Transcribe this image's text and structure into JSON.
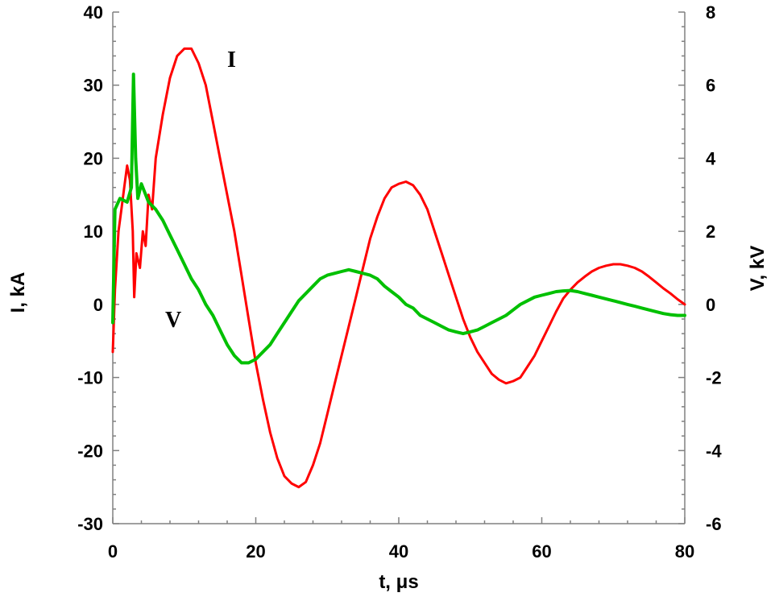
{
  "chart_data": {
    "type": "line",
    "xlabel": "t, μs",
    "ylabel_left": "I, kA",
    "ylabel_right": "V, kV",
    "xlim": [
      0,
      80
    ],
    "ylim_left": [
      -30,
      40
    ],
    "ylim_right": [
      -6,
      8
    ],
    "x_ticks": [
      "0",
      "20",
      "40",
      "60",
      "80"
    ],
    "y_left_ticks": [
      "-30",
      "-20",
      "-10",
      "0",
      "10",
      "20",
      "30",
      "40"
    ],
    "y_right_ticks": [
      "-6",
      "-4",
      "-2",
      "0",
      "2",
      "4",
      "6",
      "8"
    ],
    "grid": false,
    "series": [
      {
        "name": "I",
        "axis": "left",
        "color": "#ff0000",
        "points": [
          [
            0,
            -6.5
          ],
          [
            0.3,
            2
          ],
          [
            0.8,
            10
          ],
          [
            1.2,
            13
          ],
          [
            1.6,
            16
          ],
          [
            2.0,
            19
          ],
          [
            2.4,
            17
          ],
          [
            2.8,
            10
          ],
          [
            3.0,
            1
          ],
          [
            3.3,
            7
          ],
          [
            3.8,
            5
          ],
          [
            4.2,
            10
          ],
          [
            4.6,
            8
          ],
          [
            5.0,
            15
          ],
          [
            5.5,
            13
          ],
          [
            6,
            20
          ],
          [
            7,
            26
          ],
          [
            8,
            31
          ],
          [
            9,
            34
          ],
          [
            10,
            35
          ],
          [
            11,
            35
          ],
          [
            12,
            33
          ],
          [
            13,
            30
          ],
          [
            14,
            25
          ],
          [
            15,
            20
          ],
          [
            16,
            15
          ],
          [
            17,
            10
          ],
          [
            18,
            4
          ],
          [
            19,
            -2
          ],
          [
            20,
            -8
          ],
          [
            21,
            -13
          ],
          [
            22,
            -17.5
          ],
          [
            23,
            -21
          ],
          [
            24,
            -23.5
          ],
          [
            25,
            -24.5
          ],
          [
            26,
            -25
          ],
          [
            27,
            -24.3
          ],
          [
            28,
            -22
          ],
          [
            29,
            -19
          ],
          [
            30,
            -15
          ],
          [
            31,
            -11
          ],
          [
            32,
            -7
          ],
          [
            33,
            -3
          ],
          [
            34,
            1
          ],
          [
            35,
            5
          ],
          [
            36,
            9
          ],
          [
            37,
            12
          ],
          [
            38,
            14.5
          ],
          [
            39,
            16
          ],
          [
            40,
            16.5
          ],
          [
            41,
            16.8
          ],
          [
            42,
            16.3
          ],
          [
            43,
            15
          ],
          [
            44,
            13
          ],
          [
            45,
            10
          ],
          [
            46,
            7
          ],
          [
            47,
            4
          ],
          [
            48,
            1
          ],
          [
            49,
            -2
          ],
          [
            50,
            -4.5
          ],
          [
            51,
            -6.5
          ],
          [
            52,
            -8
          ],
          [
            53,
            -9.5
          ],
          [
            54,
            -10.3
          ],
          [
            55,
            -10.8
          ],
          [
            56,
            -10.5
          ],
          [
            57,
            -10
          ],
          [
            58,
            -8.5
          ],
          [
            59,
            -7
          ],
          [
            60,
            -5
          ],
          [
            61,
            -3
          ],
          [
            62,
            -1
          ],
          [
            63,
            0.8
          ],
          [
            64,
            2
          ],
          [
            65,
            3
          ],
          [
            66,
            3.8
          ],
          [
            67,
            4.5
          ],
          [
            68,
            5
          ],
          [
            69,
            5.3
          ],
          [
            70,
            5.5
          ],
          [
            71,
            5.5
          ],
          [
            72,
            5.3
          ],
          [
            73,
            5
          ],
          [
            74,
            4.5
          ],
          [
            75,
            3.8
          ],
          [
            76,
            3
          ],
          [
            77,
            2.2
          ],
          [
            78,
            1.5
          ],
          [
            79,
            0.7
          ],
          [
            80,
            0
          ]
        ]
      },
      {
        "name": "V",
        "axis": "right",
        "color": "#00c000",
        "points": [
          [
            0,
            -0.5
          ],
          [
            0.3,
            2.6
          ],
          [
            1,
            2.9
          ],
          [
            2,
            2.8
          ],
          [
            2.6,
            3.2
          ],
          [
            2.9,
            6.3
          ],
          [
            3.2,
            4
          ],
          [
            3.5,
            2.9
          ],
          [
            4,
            3.3
          ],
          [
            5,
            2.8
          ],
          [
            6,
            2.6
          ],
          [
            7,
            2.3
          ],
          [
            8,
            1.9
          ],
          [
            9,
            1.5
          ],
          [
            10,
            1.1
          ],
          [
            11,
            0.7
          ],
          [
            12,
            0.4
          ],
          [
            13,
            0
          ],
          [
            14,
            -0.3
          ],
          [
            15,
            -0.7
          ],
          [
            16,
            -1.1
          ],
          [
            17,
            -1.4
          ],
          [
            18,
            -1.6
          ],
          [
            19,
            -1.6
          ],
          [
            20,
            -1.5
          ],
          [
            21,
            -1.3
          ],
          [
            22,
            -1.1
          ],
          [
            23,
            -0.8
          ],
          [
            24,
            -0.5
          ],
          [
            25,
            -0.2
          ],
          [
            26,
            0.1
          ],
          [
            27,
            0.3
          ],
          [
            28,
            0.5
          ],
          [
            29,
            0.7
          ],
          [
            30,
            0.8
          ],
          [
            31,
            0.85
          ],
          [
            32,
            0.9
          ],
          [
            33,
            0.95
          ],
          [
            34,
            0.9
          ],
          [
            35,
            0.85
          ],
          [
            36,
            0.8
          ],
          [
            37,
            0.7
          ],
          [
            38,
            0.5
          ],
          [
            39,
            0.35
          ],
          [
            40,
            0.2
          ],
          [
            41,
            0
          ],
          [
            42,
            -0.1
          ],
          [
            43,
            -0.3
          ],
          [
            44,
            -0.4
          ],
          [
            45,
            -0.5
          ],
          [
            46,
            -0.6
          ],
          [
            47,
            -0.7
          ],
          [
            48,
            -0.75
          ],
          [
            49,
            -0.8
          ],
          [
            50,
            -0.75
          ],
          [
            51,
            -0.7
          ],
          [
            52,
            -0.6
          ],
          [
            53,
            -0.5
          ],
          [
            54,
            -0.4
          ],
          [
            55,
            -0.3
          ],
          [
            56,
            -0.15
          ],
          [
            57,
            0
          ],
          [
            58,
            0.1
          ],
          [
            59,
            0.2
          ],
          [
            60,
            0.25
          ],
          [
            61,
            0.3
          ],
          [
            62,
            0.35
          ],
          [
            63,
            0.37
          ],
          [
            64,
            0.38
          ],
          [
            65,
            0.35
          ],
          [
            66,
            0.3
          ],
          [
            67,
            0.25
          ],
          [
            68,
            0.2
          ],
          [
            69,
            0.15
          ],
          [
            70,
            0.1
          ],
          [
            71,
            0.05
          ],
          [
            72,
            0
          ],
          [
            73,
            -0.05
          ],
          [
            74,
            -0.1
          ],
          [
            75,
            -0.15
          ],
          [
            76,
            -0.2
          ],
          [
            77,
            -0.25
          ],
          [
            78,
            -0.28
          ],
          [
            79,
            -0.3
          ],
          [
            80,
            -0.3
          ]
        ]
      }
    ]
  }
}
